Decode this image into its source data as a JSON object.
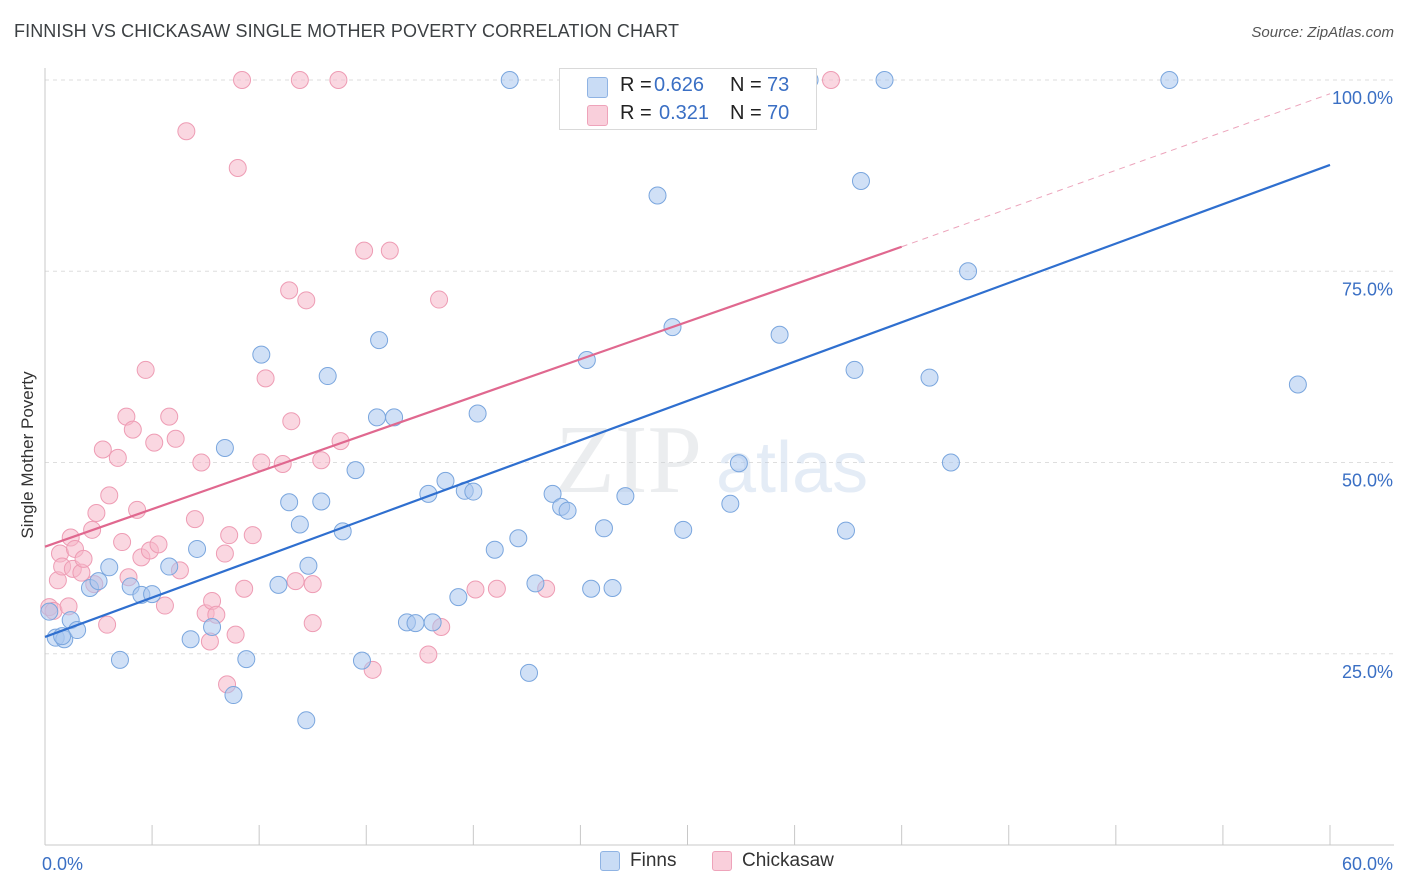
{
  "title": "FINNISH VS CHICKASAW SINGLE MOTHER POVERTY CORRELATION CHART",
  "source": {
    "prefix": "Source: ",
    "name": "ZipAtlas.com"
  },
  "watermark": {
    "part1": "ZIP",
    "part2": "atlas"
  },
  "stats": [
    {
      "series": "Finns",
      "r_label": "R =",
      "r": "0.626",
      "n_label": "N =",
      "n": "73",
      "color": "#a9c7ef"
    },
    {
      "series": "Chickasaw",
      "r_label": "R =",
      "r": "0.321",
      "n_label": "N =",
      "n": "70",
      "color": "#f5b7c9"
    }
  ],
  "colors": {
    "finns_fill": "#a9c7ef",
    "finns_stroke": "#7aa6de",
    "finns_line": "#2f6fcf",
    "chick_fill": "#f5b7c9",
    "chick_stroke": "#ee9cb4",
    "chick_line": "#e0688f",
    "axis_text": "#3a6fc4",
    "grid": "#dedede"
  },
  "chart_data": {
    "type": "scatter",
    "title": "FINNISH VS CHICKASAW SINGLE MOTHER POVERTY CORRELATION CHART",
    "xlabel": "",
    "ylabel": "Single Mother Poverty",
    "xlim": [
      0,
      60
    ],
    "ylim": [
      0,
      105
    ],
    "x_tick_labels": [
      {
        "value": 0,
        "label": "0.0%"
      },
      {
        "value": 60,
        "label": "60.0%"
      }
    ],
    "y_tick_labels": [
      {
        "value": 25,
        "label": "25.0%"
      },
      {
        "value": 50,
        "label": "50.0%"
      },
      {
        "value": 75,
        "label": "75.0%"
      },
      {
        "value": 100,
        "label": "100.0%"
      }
    ],
    "grid": true,
    "legend_position": "bottom-center",
    "series": [
      {
        "name": "Finns",
        "trend": {
          "x": [
            0,
            60
          ],
          "y": [
            27.2,
            88.9
          ]
        },
        "points": [
          [
            0.2,
            30.5
          ],
          [
            0.5,
            27.1
          ],
          [
            0.9,
            26.9
          ],
          [
            1.2,
            29.4
          ],
          [
            1.5,
            28.1
          ],
          [
            2.1,
            33.6
          ],
          [
            2.5,
            34.5
          ],
          [
            3.0,
            36.3
          ],
          [
            3.5,
            24.2
          ],
          [
            4.0,
            33.8
          ],
          [
            4.5,
            32.7
          ],
          [
            5.0,
            32.8
          ],
          [
            5.8,
            36.4
          ],
          [
            6.8,
            26.9
          ],
          [
            7.1,
            38.7
          ],
          [
            7.8,
            28.5
          ],
          [
            8.4,
            51.9
          ],
          [
            8.8,
            19.6
          ],
          [
            9.4,
            24.3
          ],
          [
            10.1,
            64.1
          ],
          [
            10.9,
            34.0
          ],
          [
            11.4,
            44.8
          ],
          [
            11.9,
            41.9
          ],
          [
            12.3,
            36.5
          ],
          [
            12.2,
            16.3
          ],
          [
            12.9,
            44.9
          ],
          [
            13.2,
            61.3
          ],
          [
            13.9,
            41.0
          ],
          [
            14.5,
            49.0
          ],
          [
            14.8,
            24.1
          ],
          [
            15.5,
            55.9
          ],
          [
            15.6,
            66.0
          ],
          [
            16.3,
            55.9
          ],
          [
            16.9,
            29.1
          ],
          [
            17.3,
            29.0
          ],
          [
            17.9,
            45.9
          ],
          [
            18.1,
            29.1
          ],
          [
            18.7,
            47.6
          ],
          [
            19.3,
            32.4
          ],
          [
            19.6,
            46.3
          ],
          [
            20.0,
            46.2
          ],
          [
            20.2,
            56.4
          ],
          [
            21.0,
            38.6
          ],
          [
            21.7,
            100.0
          ],
          [
            22.1,
            40.1
          ],
          [
            22.6,
            22.5
          ],
          [
            22.9,
            34.2
          ],
          [
            23.7,
            45.9
          ],
          [
            24.1,
            44.2
          ],
          [
            24.4,
            43.7
          ],
          [
            25.3,
            63.4
          ],
          [
            25.5,
            33.5
          ],
          [
            26.1,
            41.4
          ],
          [
            26.5,
            33.6
          ],
          [
            27.1,
            45.6
          ],
          [
            28.6,
            84.9
          ],
          [
            29.3,
            67.7
          ],
          [
            29.8,
            41.2
          ],
          [
            31.1,
            100.0
          ],
          [
            32.0,
            44.6
          ],
          [
            32.4,
            49.9
          ],
          [
            34.3,
            66.7
          ],
          [
            35.7,
            100.0
          ],
          [
            37.4,
            41.1
          ],
          [
            37.8,
            62.1
          ],
          [
            38.1,
            86.8
          ],
          [
            39.2,
            100.0
          ],
          [
            41.3,
            61.1
          ],
          [
            42.3,
            50.0
          ],
          [
            43.1,
            75.0
          ],
          [
            52.5,
            100.0
          ],
          [
            58.5,
            60.2
          ],
          [
            0.8,
            27.3
          ]
        ]
      },
      {
        "name": "Chickasaw",
        "trend": {
          "x": [
            0,
            40
          ],
          "y": [
            39.0,
            78.2
          ]
        },
        "trend_dashed": {
          "x": [
            40,
            60
          ],
          "y": [
            78.2,
            98.2
          ]
        },
        "points": [
          [
            0.2,
            31.1
          ],
          [
            0.4,
            30.6
          ],
          [
            0.6,
            34.6
          ],
          [
            0.7,
            38.1
          ],
          [
            0.8,
            36.4
          ],
          [
            1.1,
            31.2
          ],
          [
            1.2,
            40.2
          ],
          [
            1.3,
            36.1
          ],
          [
            1.4,
            38.7
          ],
          [
            1.7,
            35.6
          ],
          [
            1.8,
            37.4
          ],
          [
            2.2,
            41.2
          ],
          [
            2.3,
            34.1
          ],
          [
            2.4,
            43.4
          ],
          [
            2.7,
            51.7
          ],
          [
            2.9,
            28.8
          ],
          [
            3.0,
            45.7
          ],
          [
            3.4,
            50.6
          ],
          [
            3.6,
            39.6
          ],
          [
            3.8,
            56.0
          ],
          [
            3.9,
            35.0
          ],
          [
            4.1,
            54.3
          ],
          [
            4.3,
            43.8
          ],
          [
            4.5,
            37.6
          ],
          [
            4.7,
            62.1
          ],
          [
            4.9,
            38.5
          ],
          [
            5.1,
            52.6
          ],
          [
            5.3,
            39.3
          ],
          [
            5.6,
            31.3
          ],
          [
            5.8,
            56.0
          ],
          [
            6.1,
            53.1
          ],
          [
            6.3,
            35.9
          ],
          [
            6.6,
            93.3
          ],
          [
            7.0,
            42.6
          ],
          [
            7.3,
            50.0
          ],
          [
            7.5,
            30.3
          ],
          [
            7.7,
            26.6
          ],
          [
            7.8,
            31.9
          ],
          [
            8.0,
            30.1
          ],
          [
            8.4,
            38.1
          ],
          [
            8.5,
            21.0
          ],
          [
            8.9,
            27.5
          ],
          [
            9.0,
            88.5
          ],
          [
            9.2,
            100.0
          ],
          [
            9.3,
            33.5
          ],
          [
            9.7,
            40.5
          ],
          [
            10.1,
            50.0
          ],
          [
            10.3,
            61.0
          ],
          [
            11.1,
            49.8
          ],
          [
            11.4,
            72.5
          ],
          [
            11.5,
            55.4
          ],
          [
            11.7,
            34.5
          ],
          [
            11.9,
            100.0
          ],
          [
            12.2,
            71.2
          ],
          [
            12.5,
            34.1
          ],
          [
            12.9,
            50.3
          ],
          [
            13.7,
            100.0
          ],
          [
            13.8,
            52.8
          ],
          [
            14.9,
            77.7
          ],
          [
            15.3,
            22.9
          ],
          [
            16.1,
            77.7
          ],
          [
            17.9,
            24.9
          ],
          [
            18.4,
            71.3
          ],
          [
            18.5,
            28.5
          ],
          [
            20.1,
            33.4
          ],
          [
            21.1,
            33.5
          ],
          [
            23.4,
            33.5
          ],
          [
            36.7,
            100.0
          ],
          [
            12.5,
            29.0
          ],
          [
            8.6,
            40.5
          ]
        ]
      }
    ]
  },
  "legend": [
    {
      "label": "Finns",
      "color": "#a9c7ef"
    },
    {
      "label": "Chickasaw",
      "color": "#f5b7c9"
    }
  ]
}
